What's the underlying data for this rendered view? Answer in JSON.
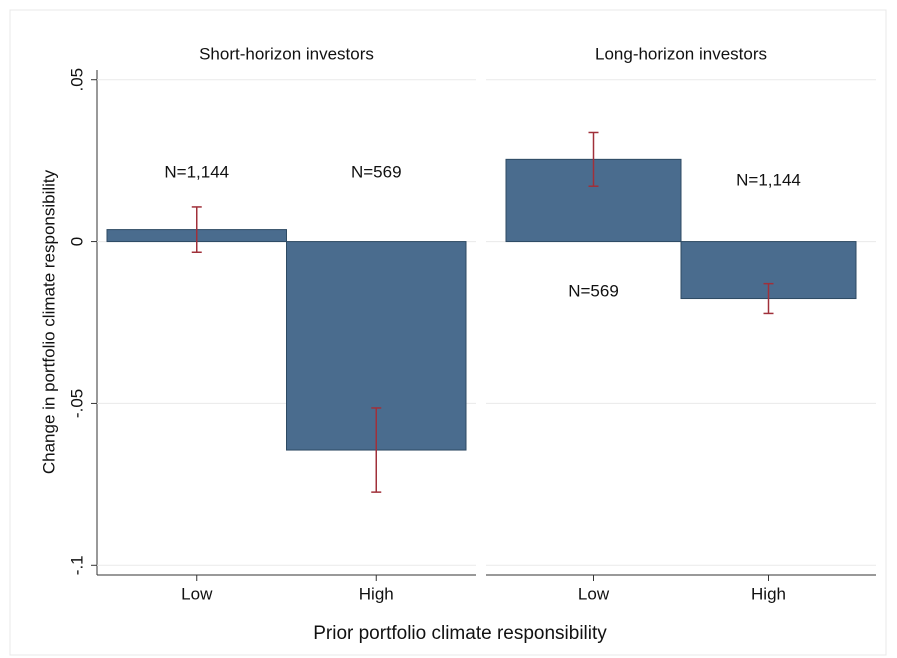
{
  "chart_data": [
    {
      "type": "bar",
      "title": "Short-horizon investors",
      "y_label": "Change in portfolio climate responsibility",
      "x_label": "Prior portfolio climate responsibility",
      "categories": [
        "Low",
        "High"
      ],
      "values": [
        0.0037,
        -0.0644
      ],
      "errors": [
        0.007,
        0.013
      ],
      "annotations": [
        "N=1,144",
        "N=569"
      ],
      "color": "#4a6c8e",
      "error_color": "#a0303a",
      "ylim": [
        -0.103,
        0.053
      ],
      "yticks": [
        {
          "value": -0.1,
          "label": "-.1"
        },
        {
          "value": -0.05,
          "label": "-.05"
        },
        0,
        {
          "value": 0.05,
          "label": ".05"
        }
      ],
      "grid": true
    },
    {
      "type": "bar",
      "title": "Long-horizon investors",
      "categories": [
        "Low",
        "High"
      ],
      "values": [
        0.0254,
        -0.0176
      ],
      "errors": [
        0.0083,
        0.0046
      ],
      "annotations": [
        "N=569",
        "N=1,144"
      ],
      "color": "#4a6c8e",
      "error_color": "#a0303a",
      "grid": true
    }
  ]
}
